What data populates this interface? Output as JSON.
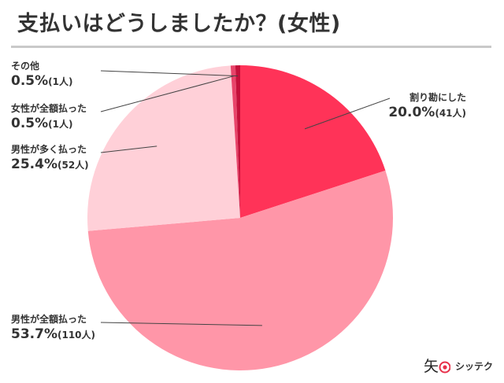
{
  "title": "支払いはどうしましたか？(女性)",
  "brand": {
    "text": "シッテク"
  },
  "chart_data": {
    "type": "pie",
    "title": "支払いはどうしましたか？(女性)",
    "start_angle_deg": 0,
    "direction": "clockwise",
    "slices": [
      {
        "label": "割り勘にした",
        "percent": 20.0,
        "percent_text": "20.0%",
        "count_text": "(41人)",
        "color": "#ff3358"
      },
      {
        "label": "男性が全額払った",
        "percent": 53.7,
        "percent_text": "53.7%",
        "count_text": "(110人)",
        "color": "#ff96a8"
      },
      {
        "label": "男性が多く払った",
        "percent": 25.4,
        "percent_text": "25.4%",
        "count_text": "(52人)",
        "color": "#ffd0d8"
      },
      {
        "label": "女性が全額払った",
        "percent": 0.5,
        "percent_text": "0.5%",
        "count_text": "(1人)",
        "color": "#e8446a"
      },
      {
        "label": "その他",
        "percent": 0.5,
        "percent_text": "0.5%",
        "count_text": "(1人)",
        "color": "#c4103a"
      }
    ]
  }
}
